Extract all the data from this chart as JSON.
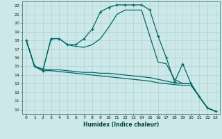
{
  "xlabel": "Humidex (Indice chaleur)",
  "background_color": "#cce8e8",
  "grid_color": "#aacccc",
  "line_color": "#006666",
  "xlim": [
    -0.5,
    23.5
  ],
  "ylim": [
    9.5,
    22.5
  ],
  "yticks": [
    10,
    11,
    12,
    13,
    14,
    15,
    16,
    17,
    18,
    19,
    20,
    21,
    22
  ],
  "xticks": [
    0,
    1,
    2,
    3,
    4,
    5,
    6,
    7,
    8,
    9,
    10,
    11,
    12,
    13,
    14,
    15,
    16,
    17,
    18,
    19,
    20,
    21,
    22,
    23
  ],
  "curve1_x": [
    0,
    1,
    2,
    3,
    4,
    5,
    6,
    7,
    8,
    9,
    10,
    11,
    12,
    13,
    14,
    15,
    16,
    17,
    18,
    19,
    20,
    21,
    22,
    23
  ],
  "curve1_y": [
    18,
    15,
    14.5,
    18.2,
    18.2,
    17.5,
    17.5,
    18.2,
    19.3,
    21.3,
    21.8,
    22.1,
    22.1,
    22.1,
    22.1,
    21.5,
    18.5,
    16.0,
    13.2,
    15.3,
    13.0,
    11.5,
    10.2,
    9.8
  ],
  "curve2_x": [
    0,
    1,
    2,
    3,
    4,
    5,
    6,
    7,
    8,
    9,
    10,
    11,
    12,
    13,
    14,
    15,
    16,
    17,
    18,
    19,
    20,
    21,
    22,
    23
  ],
  "curve2_y": [
    18,
    15,
    14.5,
    18.2,
    18.2,
    17.5,
    17.3,
    17.2,
    17.5,
    18.2,
    19.5,
    21.0,
    21.5,
    21.5,
    21.5,
    18.5,
    15.5,
    15.3,
    13.5,
    13.0,
    13.0,
    11.5,
    10.2,
    9.8
  ],
  "curve3_x": [
    0,
    1,
    2,
    3,
    4,
    5,
    6,
    7,
    8,
    9,
    10,
    11,
    12,
    13,
    14,
    15,
    16,
    17,
    18,
    19,
    20,
    21,
    22,
    23
  ],
  "curve3_y": [
    18,
    15,
    14.7,
    14.6,
    14.6,
    14.5,
    14.4,
    14.3,
    14.3,
    14.2,
    14.2,
    14.1,
    14.0,
    13.9,
    13.8,
    13.7,
    13.5,
    13.3,
    13.1,
    13.0,
    13.0,
    11.5,
    10.2,
    9.8
  ],
  "curve4_x": [
    0,
    1,
    2,
    3,
    4,
    5,
    6,
    7,
    8,
    9,
    10,
    11,
    12,
    13,
    14,
    15,
    16,
    17,
    18,
    19,
    20,
    21,
    22,
    23
  ],
  "curve4_y": [
    18,
    15,
    14.5,
    14.5,
    14.4,
    14.3,
    14.2,
    14.1,
    14.0,
    13.9,
    13.8,
    13.7,
    13.6,
    13.5,
    13.4,
    13.3,
    13.1,
    13.0,
    12.9,
    12.8,
    12.8,
    11.5,
    10.2,
    9.8
  ]
}
